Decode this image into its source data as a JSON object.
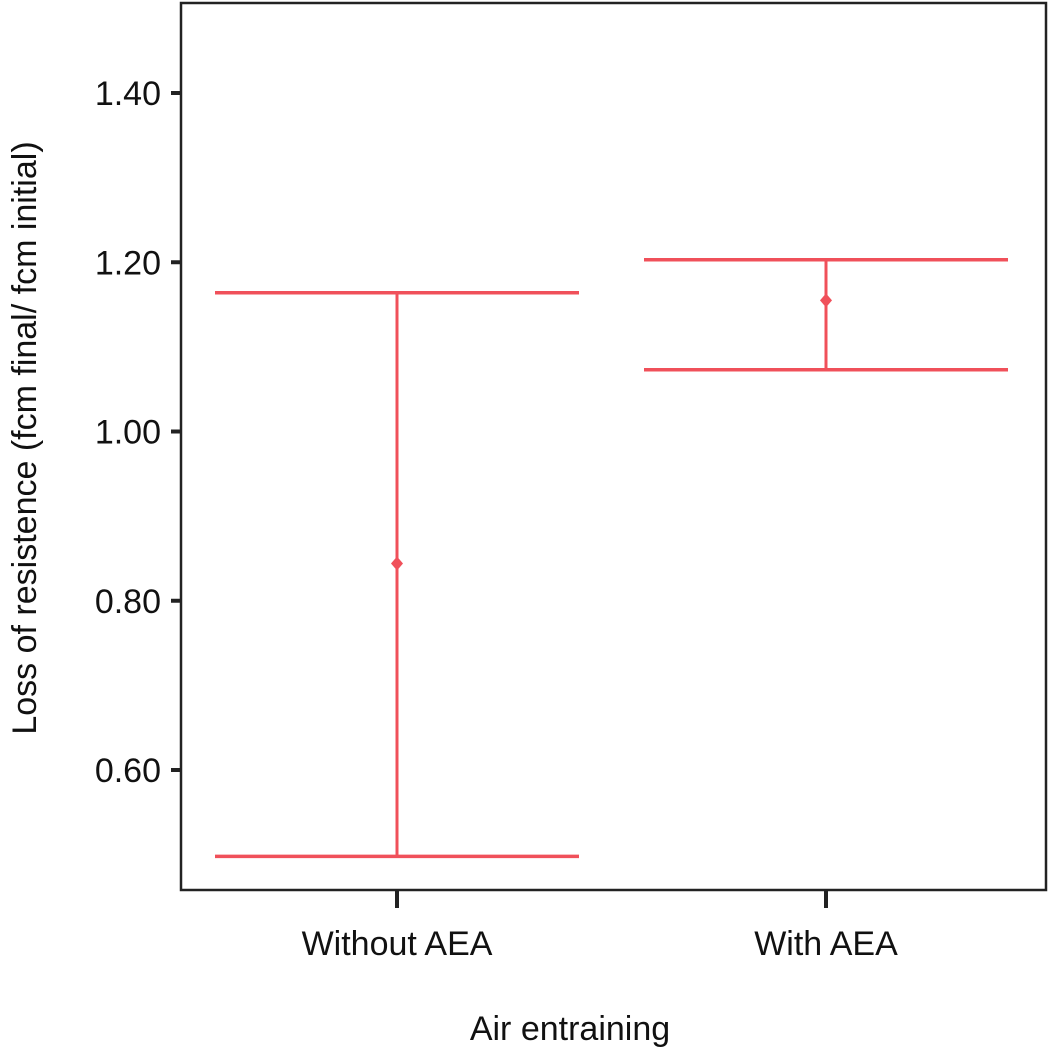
{
  "chart_data": {
    "type": "errorbar",
    "xlabel": "Air entraining",
    "ylabel": "Loss of resistence (fcm final/ fcm initial)",
    "categories": [
      "Without AEA",
      "With AEA"
    ],
    "ylim": [
      0.47,
      1.5
    ],
    "yticks": [
      0.6,
      0.8,
      1.0,
      1.2,
      1.4
    ],
    "ytick_labels": [
      "0.60",
      "0.80",
      "1.00",
      "1.20",
      "1.40"
    ],
    "series": [
      {
        "points": [
          {
            "category": "Without AEA",
            "mean": 0.844,
            "lower": 0.498,
            "upper": 1.164
          },
          {
            "category": "With AEA",
            "mean": 1.155,
            "lower": 1.073,
            "upper": 1.203
          }
        ]
      }
    ],
    "grid": false,
    "colors": {
      "series": "#f0505a",
      "axis": "#222222"
    }
  }
}
